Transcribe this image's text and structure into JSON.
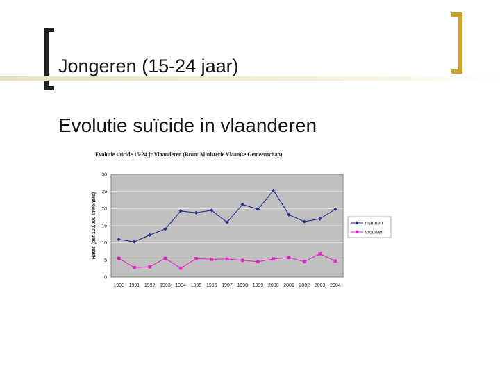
{
  "slide": {
    "title": "Jongeren (15-24 jaar)",
    "subtitle": "Evolutie suïcide in vlaanderen",
    "accent_colors": {
      "left_bracket": "#1f1f1f",
      "right_bracket": "#c9a227",
      "rule": "#e6e0c2"
    }
  },
  "chart_data": {
    "type": "line",
    "title": "Evolutie suïcide 15-24 jr Vlaanderen (Bron: Ministerie Vlaamse Gemeenschap)",
    "xlabel": "",
    "ylabel": "Rates (per 100.000 inwoners)",
    "categories": [
      "1990",
      "1991",
      "1992",
      "1993",
      "1994",
      "1995",
      "1996",
      "1997",
      "1998",
      "1999",
      "2000",
      "2001",
      "2002",
      "2003",
      "2004"
    ],
    "ylim": [
      0,
      30
    ],
    "yticks": [
      "0",
      "5",
      "10",
      "15",
      "20",
      "25",
      "30"
    ],
    "grid": true,
    "legend_position": "right",
    "plot_background": "#c0c0c0",
    "series": [
      {
        "name": "mannen",
        "color": "#1f2a8c",
        "marker": "diamond",
        "values": [
          11.0,
          10.3,
          12.3,
          14.0,
          19.3,
          18.8,
          19.5,
          16.0,
          21.2,
          19.8,
          25.3,
          18.2,
          16.2,
          17.0,
          19.8
        ]
      },
      {
        "name": "vrouwen",
        "color": "#e028c8",
        "marker": "square",
        "values": [
          5.5,
          2.8,
          3.0,
          5.5,
          2.6,
          5.4,
          5.2,
          5.3,
          4.9,
          4.5,
          5.3,
          5.7,
          4.5,
          6.8,
          4.7
        ]
      }
    ]
  }
}
